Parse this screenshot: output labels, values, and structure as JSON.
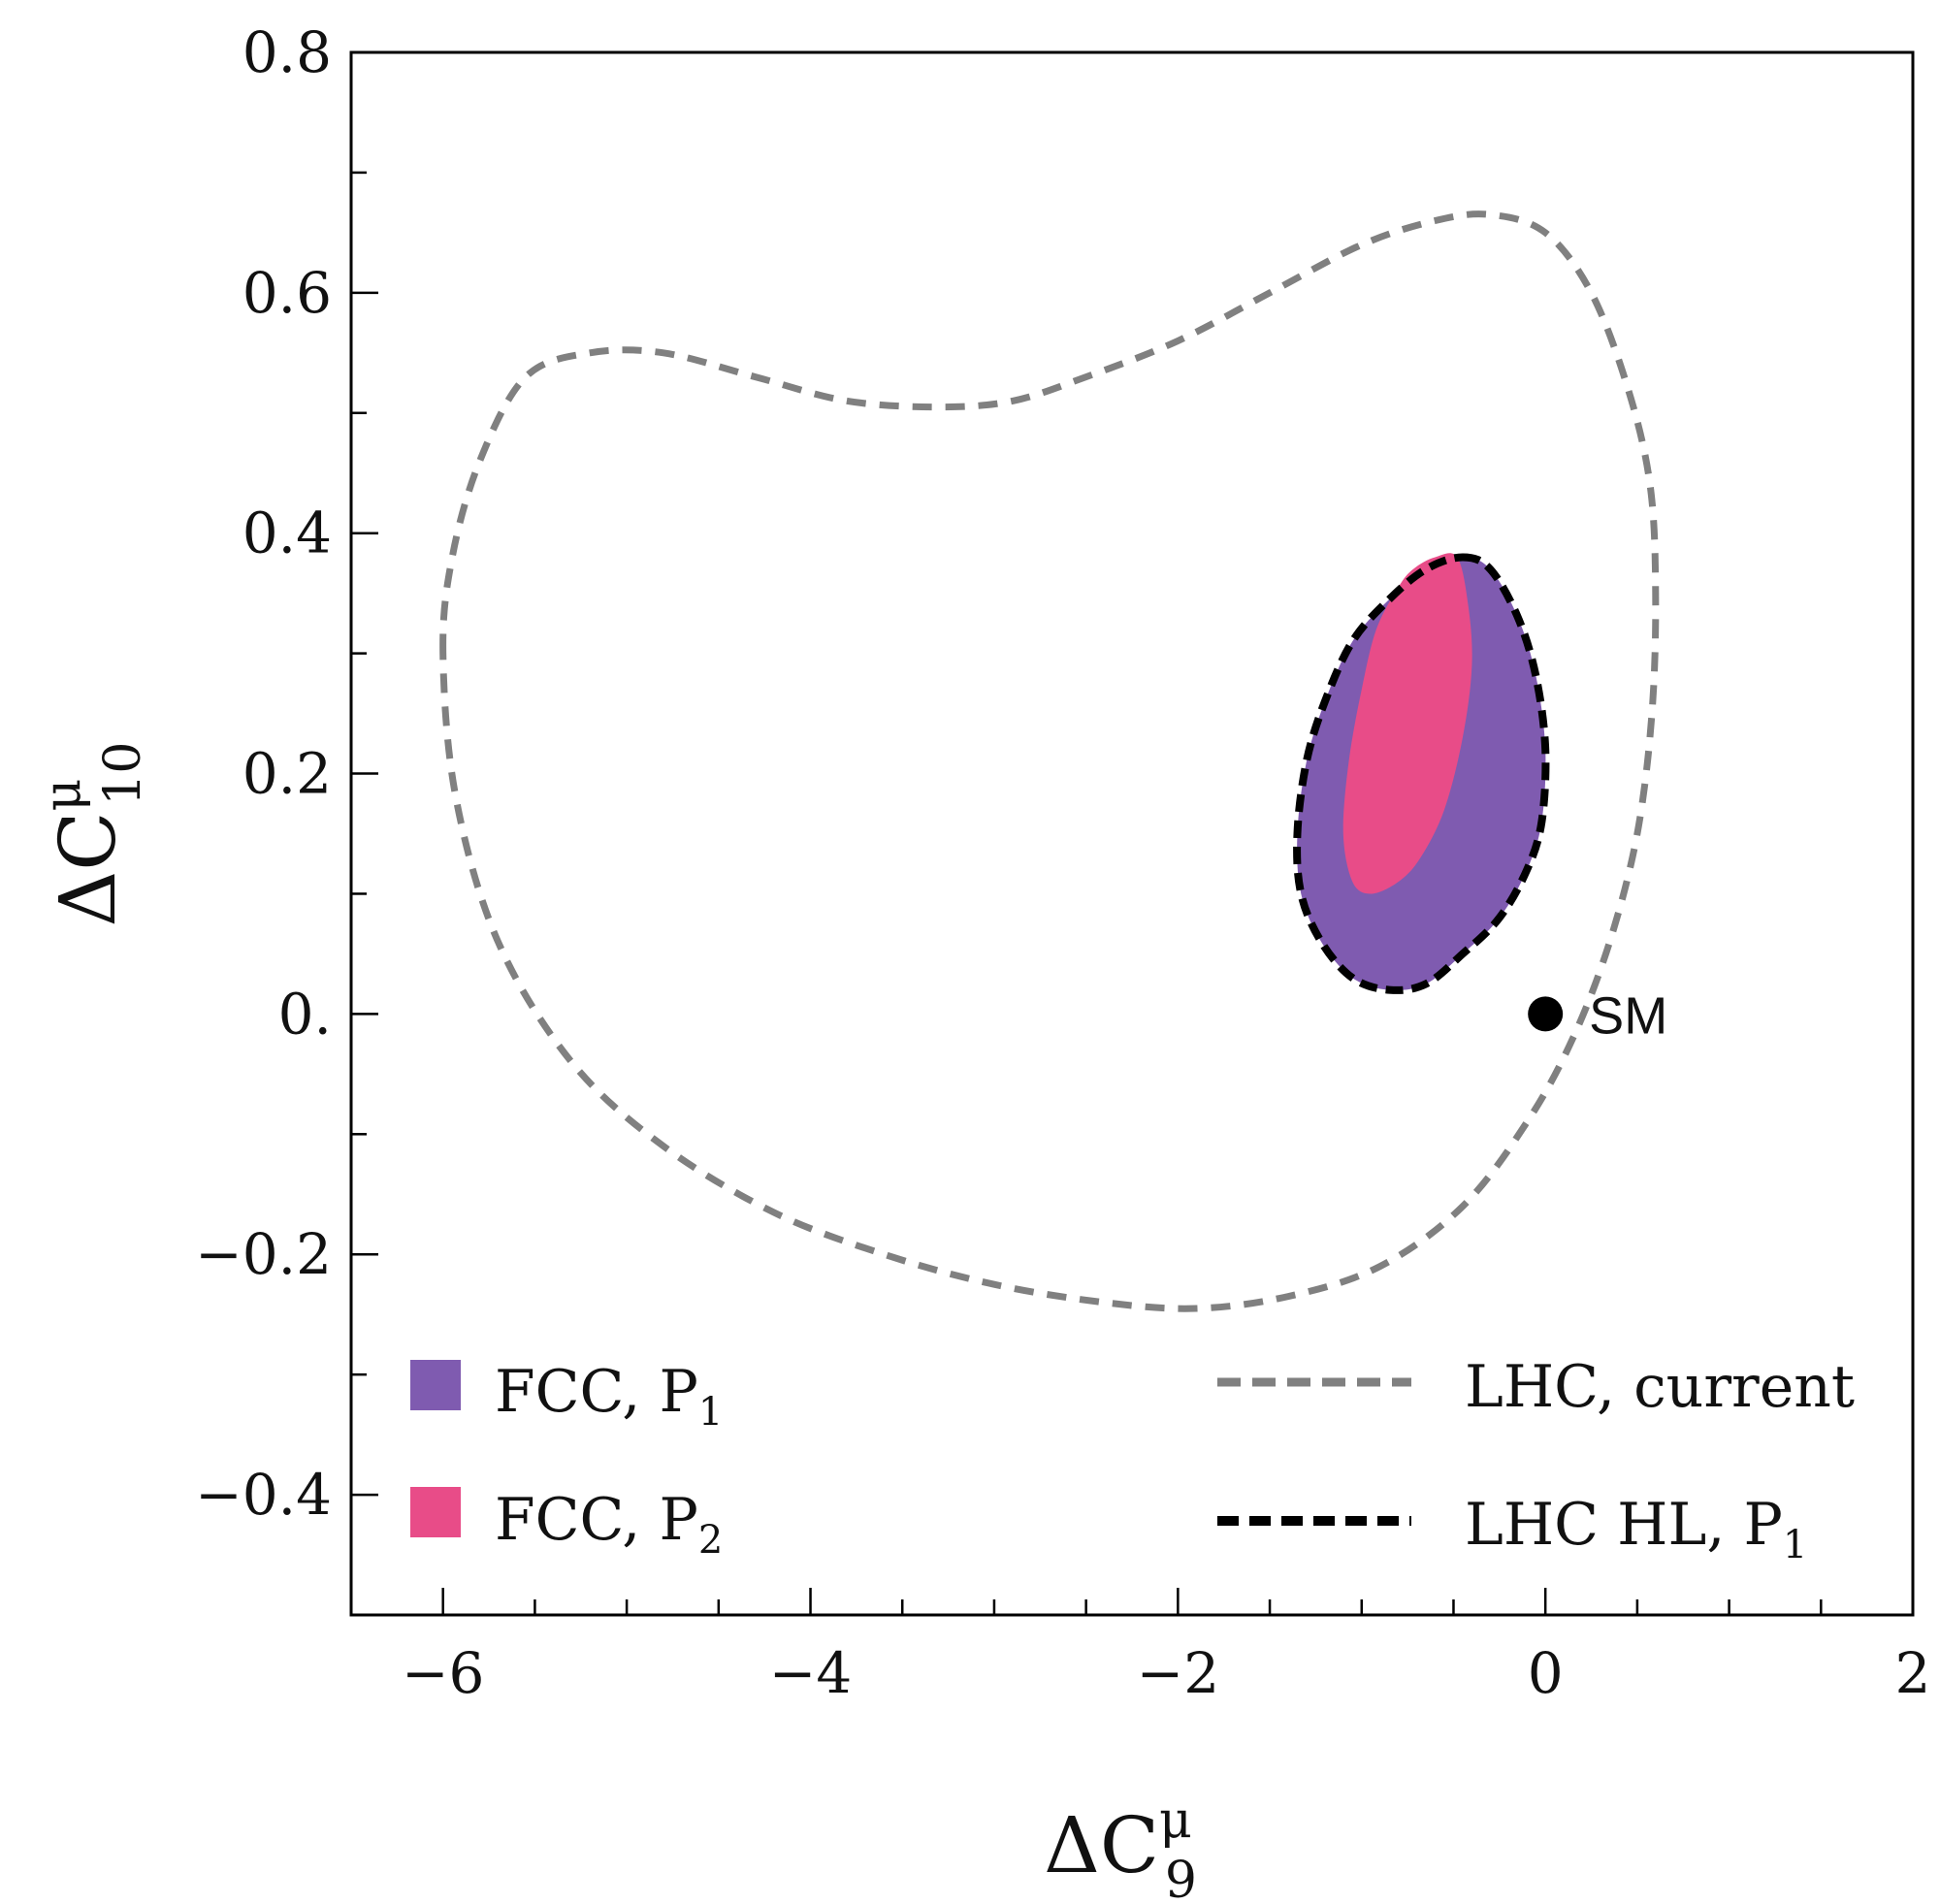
{
  "chart_data": {
    "type": "contour",
    "xlabel": {
      "main": "ΔC",
      "sup": "μ",
      "sub": "9"
    },
    "ylabel": {
      "main": "ΔC",
      "sup": "μ",
      "sub": "10"
    },
    "xlim": [
      -6.5,
      2
    ],
    "ylim": [
      -0.5,
      0.8
    ],
    "x_ticks": [
      -6,
      -4,
      -2,
      0,
      2
    ],
    "x_tick_labels": [
      "−6",
      "−4",
      "−2",
      "0",
      "2"
    ],
    "y_ticks": [
      -0.4,
      -0.2,
      0.0,
      0.2,
      0.4,
      0.6,
      0.8
    ],
    "y_tick_labels": [
      "−0.4",
      "−0.2",
      "0.",
      "0.2",
      "0.4",
      "0.6",
      "0.8"
    ],
    "grid": false,
    "colors": {
      "fcc_p1": "#7f5bb0",
      "fcc_p2": "#e84c88",
      "lhc_current": "#808080",
      "lhc_hl": "#000000"
    },
    "series": [
      {
        "name": "FCC, P1",
        "label_main": "FCC, P",
        "label_sub": "1",
        "kind": "filled",
        "color": "#7f5bb0",
        "points": [
          [
            -0.45,
            0.38
          ],
          [
            -0.3,
            0.37
          ],
          [
            -0.15,
            0.33
          ],
          [
            -0.05,
            0.28
          ],
          [
            0.0,
            0.22
          ],
          [
            -0.02,
            0.16
          ],
          [
            -0.1,
            0.12
          ],
          [
            -0.25,
            0.08
          ],
          [
            -0.45,
            0.05
          ],
          [
            -0.65,
            0.025
          ],
          [
            -0.85,
            0.02
          ],
          [
            -1.05,
            0.03
          ],
          [
            -1.22,
            0.06
          ],
          [
            -1.33,
            0.1
          ],
          [
            -1.35,
            0.15
          ],
          [
            -1.3,
            0.21
          ],
          [
            -1.2,
            0.26
          ],
          [
            -1.05,
            0.31
          ],
          [
            -0.85,
            0.345
          ],
          [
            -0.65,
            0.37
          ]
        ]
      },
      {
        "name": "FCC, P2",
        "label_main": "FCC, P",
        "label_sub": "2",
        "kind": "filled",
        "color": "#e84c88",
        "points": [
          [
            -0.6,
            0.38
          ],
          [
            -0.48,
            0.38
          ],
          [
            -0.42,
            0.34
          ],
          [
            -0.4,
            0.29
          ],
          [
            -0.45,
            0.23
          ],
          [
            -0.55,
            0.17
          ],
          [
            -0.68,
            0.13
          ],
          [
            -0.8,
            0.11
          ],
          [
            -0.95,
            0.1
          ],
          [
            -1.05,
            0.11
          ],
          [
            -1.1,
            0.15
          ],
          [
            -1.07,
            0.21
          ],
          [
            -1.0,
            0.27
          ],
          [
            -0.92,
            0.32
          ],
          [
            -0.8,
            0.355
          ],
          [
            -0.72,
            0.37
          ]
        ]
      },
      {
        "name": "LHC, current",
        "label_main": "LHC, current",
        "kind": "dashed",
        "color": "#808080",
        "points": [
          [
            -6.0,
            0.3
          ],
          [
            -5.95,
            0.38
          ],
          [
            -5.8,
            0.46
          ],
          [
            -5.55,
            0.53
          ],
          [
            -5.2,
            0.55
          ],
          [
            -4.8,
            0.55
          ],
          [
            -4.3,
            0.53
          ],
          [
            -3.8,
            0.51
          ],
          [
            -3.3,
            0.505
          ],
          [
            -2.9,
            0.51
          ],
          [
            -2.5,
            0.53
          ],
          [
            -2.0,
            0.56
          ],
          [
            -1.5,
            0.6
          ],
          [
            -1.0,
            0.64
          ],
          [
            -0.6,
            0.66
          ],
          [
            -0.3,
            0.665
          ],
          [
            0.0,
            0.65
          ],
          [
            0.25,
            0.6
          ],
          [
            0.45,
            0.52
          ],
          [
            0.57,
            0.44
          ],
          [
            0.6,
            0.35
          ],
          [
            0.58,
            0.25
          ],
          [
            0.5,
            0.15
          ],
          [
            0.35,
            0.06
          ],
          [
            0.15,
            -0.02
          ],
          [
            -0.1,
            -0.09
          ],
          [
            -0.45,
            -0.16
          ],
          [
            -0.9,
            -0.21
          ],
          [
            -1.4,
            -0.235
          ],
          [
            -1.9,
            -0.245
          ],
          [
            -2.4,
            -0.24
          ],
          [
            -3.0,
            -0.225
          ],
          [
            -3.6,
            -0.2
          ],
          [
            -4.2,
            -0.165
          ],
          [
            -4.8,
            -0.11
          ],
          [
            -5.3,
            -0.04
          ],
          [
            -5.7,
            0.06
          ],
          [
            -5.93,
            0.18
          ]
        ]
      },
      {
        "name": "LHC HL, P1",
        "label_main": "LHC HL, P",
        "label_sub": "1",
        "kind": "dashed",
        "color": "#000000",
        "points": [
          [
            -0.45,
            0.38
          ],
          [
            -0.3,
            0.37
          ],
          [
            -0.15,
            0.33
          ],
          [
            -0.05,
            0.28
          ],
          [
            0.0,
            0.22
          ],
          [
            -0.02,
            0.16
          ],
          [
            -0.1,
            0.12
          ],
          [
            -0.25,
            0.08
          ],
          [
            -0.45,
            0.05
          ],
          [
            -0.65,
            0.025
          ],
          [
            -0.85,
            0.02
          ],
          [
            -1.05,
            0.03
          ],
          [
            -1.22,
            0.06
          ],
          [
            -1.33,
            0.1
          ],
          [
            -1.35,
            0.15
          ],
          [
            -1.3,
            0.21
          ],
          [
            -1.2,
            0.26
          ],
          [
            -1.05,
            0.31
          ],
          [
            -0.85,
            0.345
          ],
          [
            -0.65,
            0.37
          ]
        ]
      }
    ],
    "annotations": [
      {
        "text": "SM",
        "x": 0.0,
        "y": 0.0
      }
    ],
    "legend": {
      "left_column": "bottom-left",
      "right_column": "bottom-right"
    }
  }
}
